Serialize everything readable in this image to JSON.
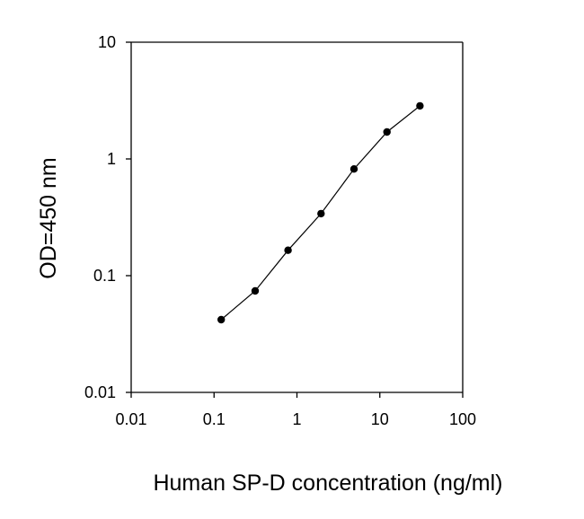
{
  "chart_data": {
    "type": "line",
    "title": "",
    "xlabel": "Human SP-D concentration (ng/ml)",
    "ylabel": "OD=450 nm",
    "x_scale": "log",
    "y_scale": "log",
    "xlim": [
      0.01,
      100
    ],
    "ylim": [
      0.01,
      10
    ],
    "x_ticks": [
      {
        "value": 0.01,
        "label": "0.01"
      },
      {
        "value": 0.1,
        "label": "0.1"
      },
      {
        "value": 1,
        "label": "1"
      },
      {
        "value": 10,
        "label": "10"
      },
      {
        "value": 100,
        "label": "100"
      }
    ],
    "y_ticks": [
      {
        "value": 0.01,
        "label": "0.01"
      },
      {
        "value": 0.1,
        "label": "0.1"
      },
      {
        "value": 1,
        "label": "1"
      },
      {
        "value": 10,
        "label": "10"
      }
    ],
    "grid": false,
    "legend": "none",
    "series": [
      {
        "x": [
          0.122,
          0.313,
          0.781,
          1.95,
          4.88,
          12.2,
          30.5
        ],
        "y": [
          0.042,
          0.074,
          0.165,
          0.34,
          0.82,
          1.7,
          2.85
        ]
      }
    ],
    "colors": {
      "line": "#000000",
      "marker": "#000000",
      "axes": "#000000"
    }
  }
}
